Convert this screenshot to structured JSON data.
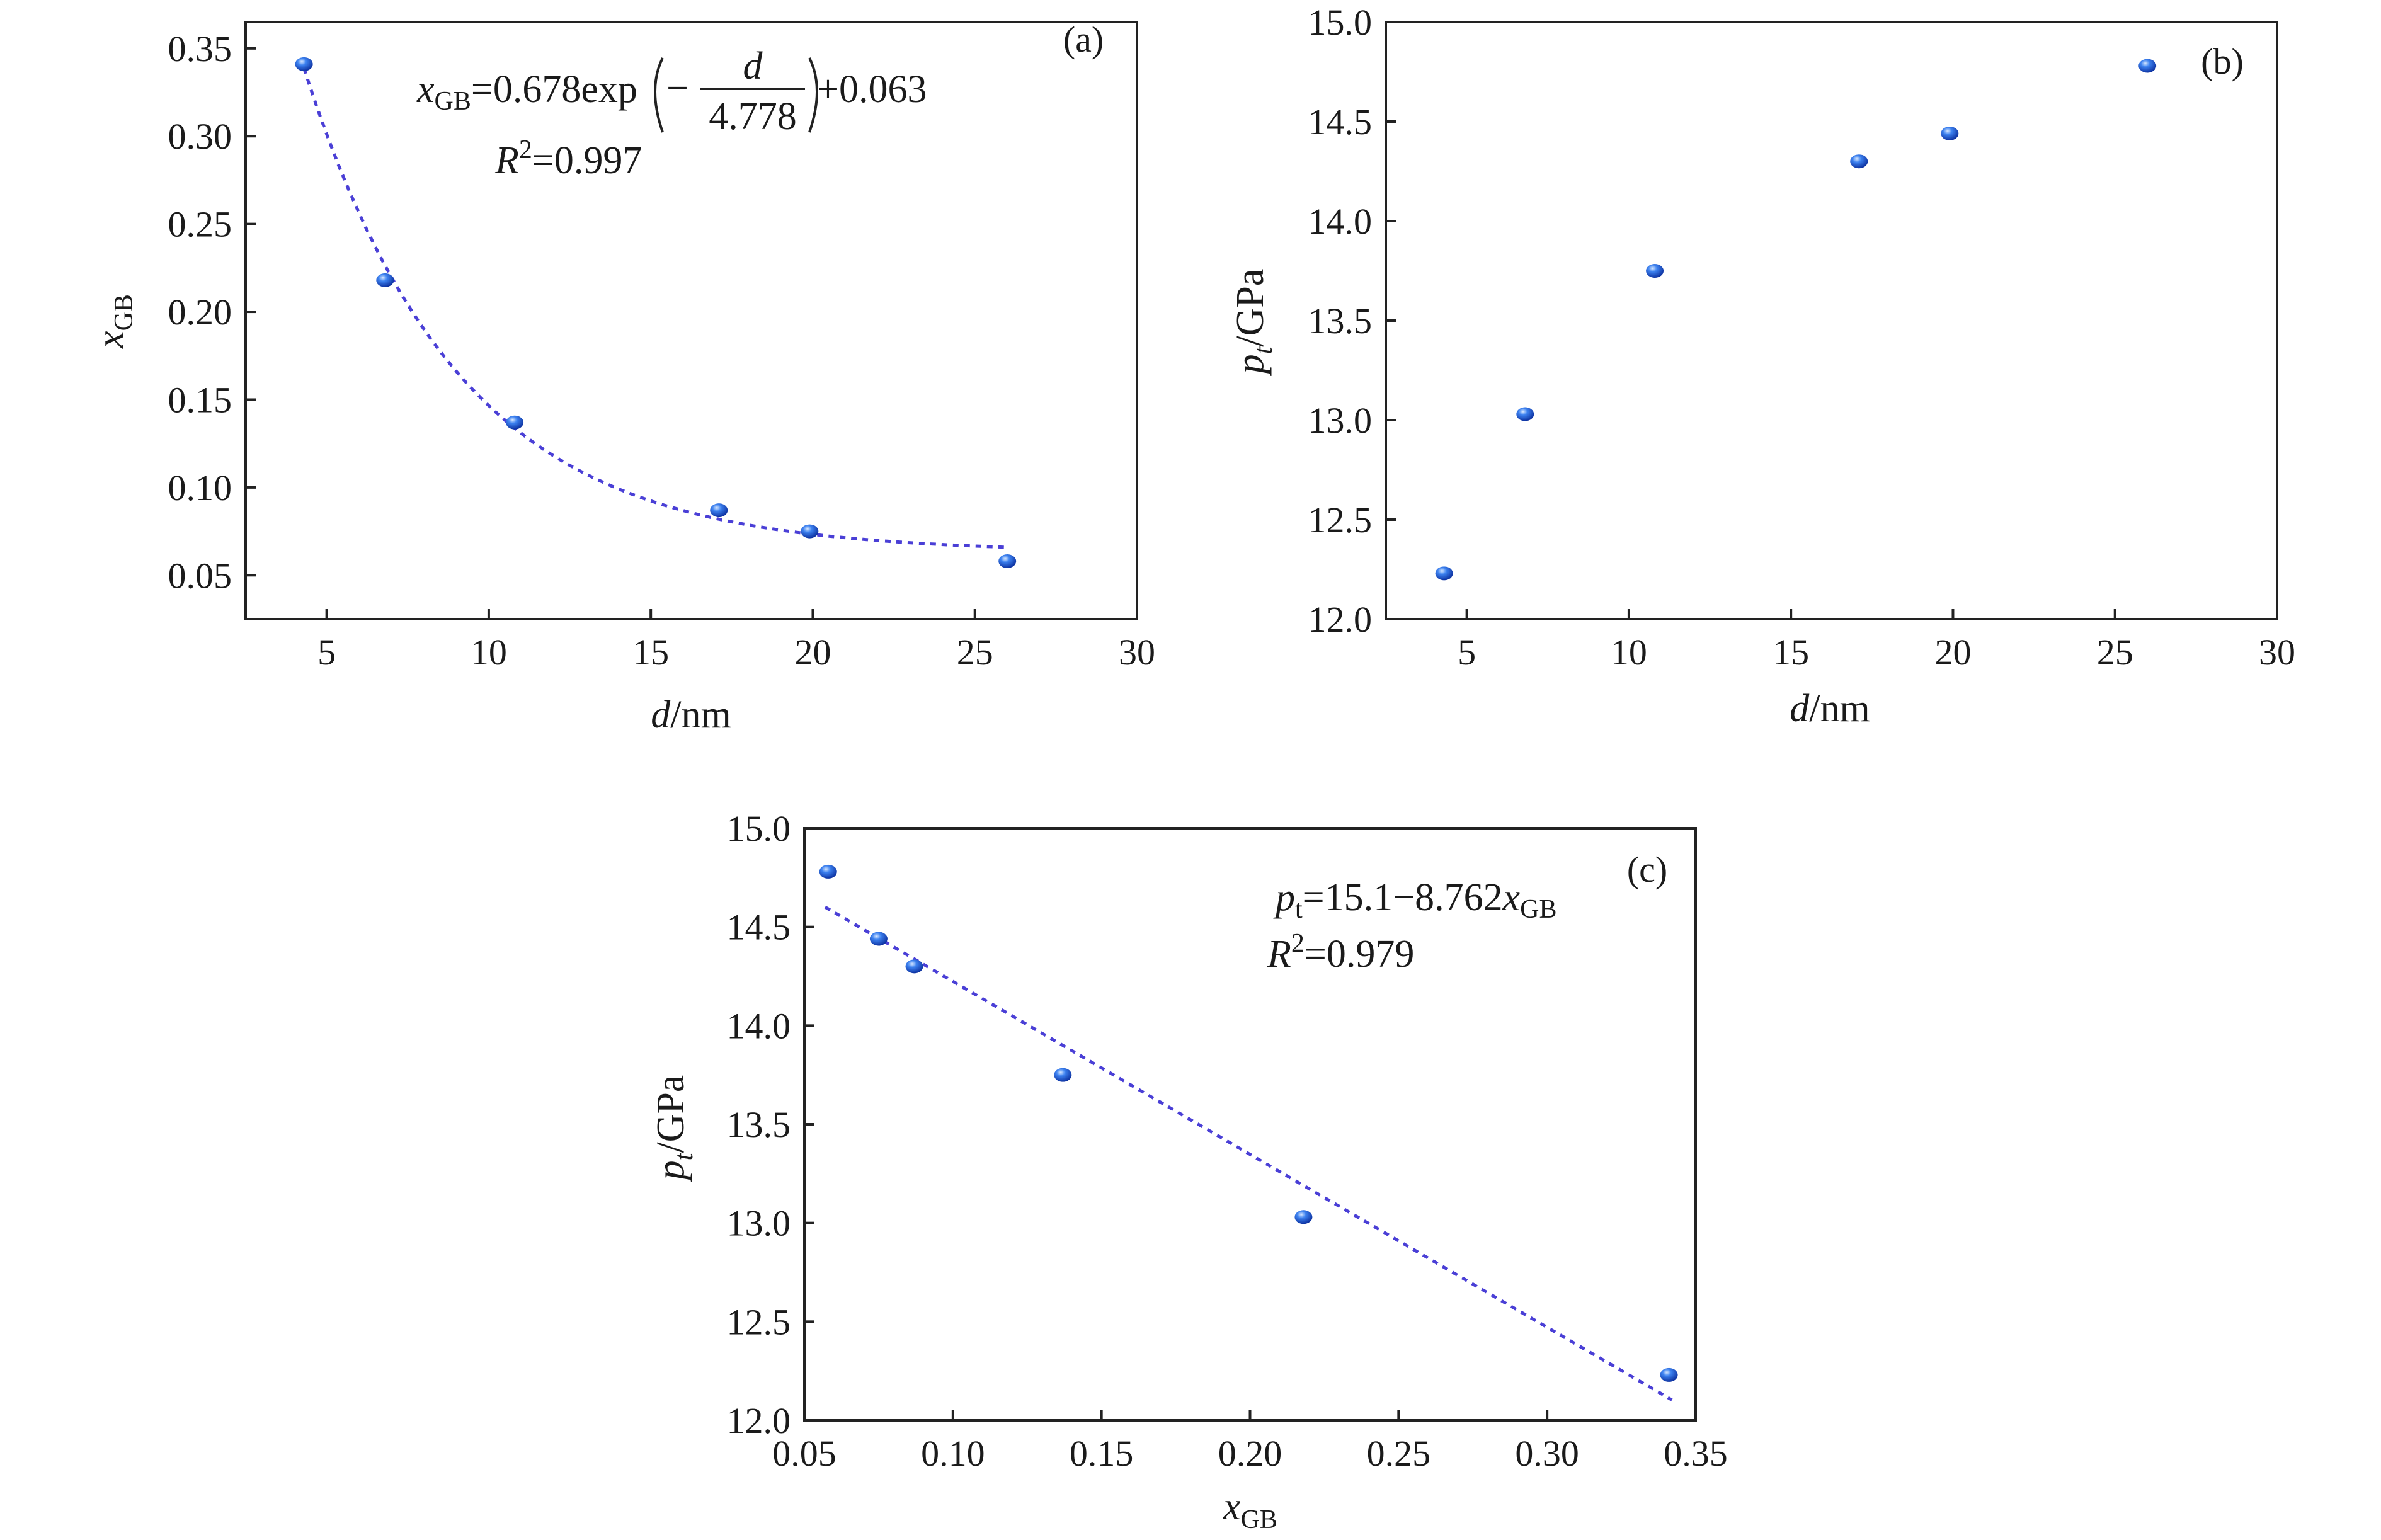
{
  "chart_data": [
    {
      "id": "a",
      "type": "scatter",
      "panel_label": "(a)",
      "xlabel": {
        "var": "d",
        "unit": "/nm"
      },
      "ylabel": {
        "var": "x",
        "sub": "GB"
      },
      "xlim": [
        2.5,
        30
      ],
      "ylim": [
        0.025,
        0.365
      ],
      "xticks": [
        5,
        10,
        15,
        20,
        25,
        30
      ],
      "yticks": [
        0.05,
        0.1,
        0.15,
        0.2,
        0.25,
        0.3,
        0.35
      ],
      "ytick_decimals": 2,
      "xtick_decimals": 0,
      "points": {
        "x": [
          4.3,
          6.8,
          10.8,
          17.1,
          19.9,
          26.0
        ],
        "y": [
          0.341,
          0.218,
          0.137,
          0.087,
          0.075,
          0.058
        ]
      },
      "fit": {
        "type": "exp",
        "A": 0.678,
        "tau": 4.778,
        "c": 0.063,
        "x_range": [
          4.3,
          26.0
        ]
      },
      "annotation": {
        "eq_lhs_var": "x",
        "eq_lhs_sub": "GB",
        "eq_mid": "=0.678exp",
        "eq_minus": "−",
        "eq_num": "d",
        "eq_den": "4.778",
        "eq_tail": "+0.063",
        "r2_var": "R",
        "r2_sup": "2",
        "r2_val": "=0.997"
      }
    },
    {
      "id": "b",
      "type": "scatter",
      "panel_label": "(b)",
      "xlabel": {
        "var": "d",
        "unit": "/nm"
      },
      "ylabel": {
        "var": "p",
        "sub": "t",
        "unit": "/GPa"
      },
      "xlim": [
        2.5,
        30
      ],
      "ylim": [
        12.0,
        15.0
      ],
      "xticks": [
        5,
        10,
        15,
        20,
        25,
        30
      ],
      "yticks": [
        12.0,
        12.5,
        13.0,
        13.5,
        14.0,
        14.5,
        15.0
      ],
      "ytick_decimals": 1,
      "xtick_decimals": 0,
      "points": {
        "x": [
          4.3,
          6.8,
          10.8,
          17.1,
          19.9,
          26.0
        ],
        "y": [
          12.23,
          13.03,
          13.75,
          14.3,
          14.44,
          14.78
        ]
      }
    },
    {
      "id": "c",
      "type": "scatter",
      "panel_label": "(c)",
      "xlabel": {
        "var": "x",
        "sub": "GB"
      },
      "ylabel": {
        "var": "p",
        "sub": "t",
        "unit": "/GPa"
      },
      "xlim": [
        0.05,
        0.35
      ],
      "ylim": [
        12.0,
        15.0
      ],
      "xticks": [
        0.05,
        0.1,
        0.15,
        0.2,
        0.25,
        0.3,
        0.35
      ],
      "yticks": [
        12.0,
        12.5,
        13.0,
        13.5,
        14.0,
        14.5,
        15.0
      ],
      "ytick_decimals": 1,
      "xtick_decimals": 2,
      "points": {
        "x": [
          0.058,
          0.075,
          0.087,
          0.137,
          0.218,
          0.341
        ],
        "y": [
          14.78,
          14.44,
          14.3,
          13.75,
          13.03,
          12.23
        ]
      },
      "fit": {
        "type": "linear",
        "intercept": 15.1,
        "slope": -8.762,
        "x_range": [
          0.057,
          0.342
        ]
      },
      "annotation": {
        "eq_lhs_var": "p",
        "eq_lhs_sub": "t",
        "eq_mid": "=15.1−8.762",
        "eq_var2": "x",
        "eq_sub2": "GB",
        "r2_var": "R",
        "r2_sup": "2",
        "r2_val": "=0.979"
      }
    }
  ],
  "colors": {
    "marker": "#2f6fe6",
    "marker_dark": "#0b2f9e",
    "fit_line": "#4a3fd6",
    "axis": "#222222"
  }
}
